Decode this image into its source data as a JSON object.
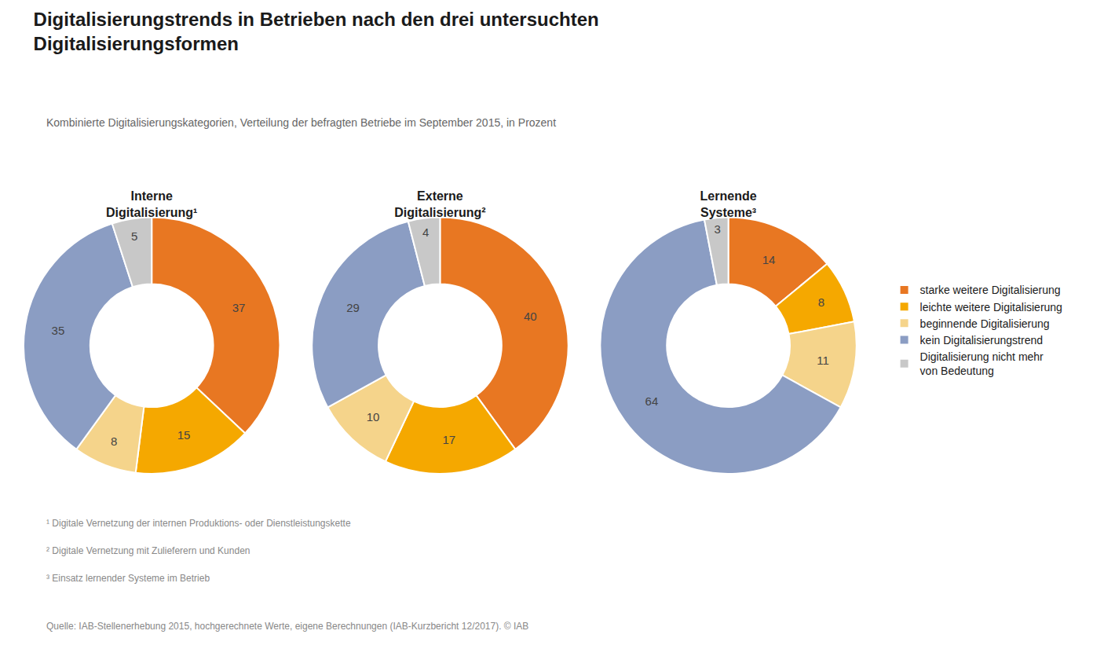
{
  "title": "Digitalisierungstrends in Betrieben nach den drei untersuchten\nDigitalisierungsformen",
  "subtitle": "Kombinierte Digitalisierungskategorien, Verteilung der befragten Betriebe im September 2015, in Prozent",
  "annotations": [
    "¹ Digitale Vernetzung der internen Produktions- oder Dienstleistungskette",
    "² Digitale Vernetzung mit Zulieferern und Kunden",
    "³ Einsatz lernender Systeme im Betrieb",
    "Quelle: IAB-Stellenerhebung 2015, hochgerechnete Werte, eigene Berechnungen (IAB-Kurzbericht 12/2017). © IAB"
  ],
  "chart_data": [
    {
      "type": "pie",
      "title": "Interne\nDigitalisierung¹",
      "categories": [
        "starke weitere Digitalisierung",
        "leichte weitere Digitalisierung",
        "beginnende Digitalisierung",
        "kein Digitalisierungstrend",
        "Digitalisierung nicht mehr\nvon Bedeutung"
      ],
      "values": [
        37,
        15,
        8,
        35,
        5
      ],
      "colors": [
        "#E87722",
        "#F5A800",
        "#F5D48B",
        "#8B9DC3",
        "#C8C8C8"
      ],
      "data_labels": true,
      "legend": "right"
    },
    {
      "type": "pie",
      "title": "Externe\nDigitalisierung²",
      "categories": [
        "starke weitere Digitalisierung",
        "leichte weitere Digitalisierung",
        "beginnende Digitalisierung",
        "kein Digitalisierungstrend",
        "Digitalisierung nicht mehr\nvon Bedeutung"
      ],
      "values": [
        40,
        17,
        10,
        29,
        4
      ],
      "colors": [
        "#E87722",
        "#F5A800",
        "#F5D48B",
        "#8B9DC3",
        "#C8C8C8"
      ],
      "data_labels": true,
      "legend": "right"
    },
    {
      "type": "pie",
      "title": "Lernende\nSysteme³",
      "categories": [
        "starke weitere Digitalisierung",
        "leichte weitere Digitalisierung",
        "beginnende Digitalisierung",
        "kein Digitalisierungstrend",
        "Digitalisierung nicht mehr\nvon Bedeutung"
      ],
      "values": [
        14,
        8,
        11,
        64,
        3
      ],
      "colors": [
        "#E87722",
        "#F5A800",
        "#F5D48B",
        "#8B9DC3",
        "#C8C8C8"
      ],
      "data_labels": true,
      "legend": "right"
    }
  ]
}
